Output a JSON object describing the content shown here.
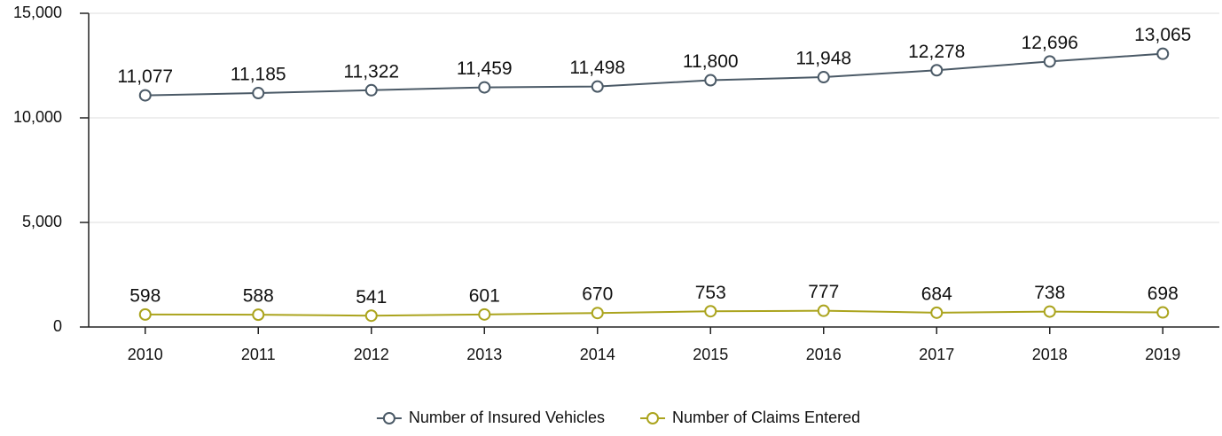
{
  "chart_data": {
    "type": "line",
    "categories": [
      "2010",
      "2011",
      "2012",
      "2013",
      "2014",
      "2015",
      "2016",
      "2017",
      "2018",
      "2019"
    ],
    "series": [
      {
        "name": "Number of Insured Vehicles",
        "color": "#4b5a67",
        "values": [
          11077,
          11185,
          11322,
          11459,
          11498,
          11800,
          11948,
          12278,
          12696,
          13065
        ],
        "value_labels": [
          "11,077",
          "11,185",
          "11,322",
          "11,459",
          "11,498",
          "11,800",
          "11,948",
          "12,278",
          "12,696",
          "13,065"
        ]
      },
      {
        "name": "Number of Claims Entered",
        "color": "#aba41e",
        "values": [
          598,
          588,
          541,
          601,
          670,
          753,
          777,
          684,
          738,
          698
        ]
      }
    ],
    "ylim": [
      0,
      15000
    ],
    "yticks": [
      0,
      {
        "value": 5000,
        "label": "5,000"
      },
      {
        "value": 10000,
        "label": "10,000"
      },
      {
        "value": 15000,
        "label": "15,000"
      }
    ],
    "grid": true,
    "legend": "bottom"
  }
}
